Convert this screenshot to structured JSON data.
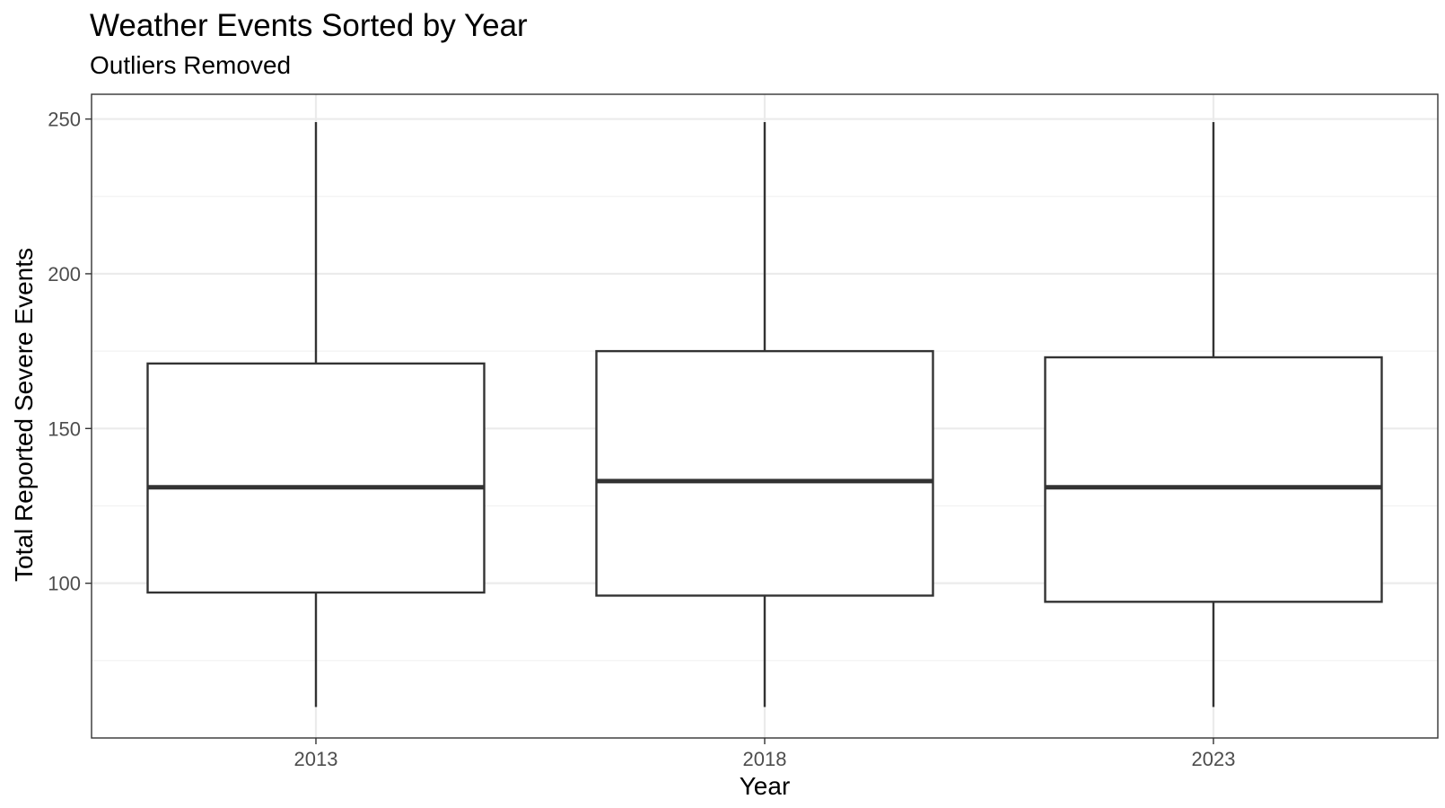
{
  "chart_data": {
    "type": "boxplot",
    "title": "Weather Events Sorted by Year",
    "subtitle": "Outliers Removed",
    "xlabel": "Year",
    "ylabel": "Total Reported Severe Events",
    "categories": [
      "2013",
      "2018",
      "2023"
    ],
    "boxes": [
      {
        "category": "2013",
        "min": 60,
        "q1": 97,
        "median": 131,
        "q3": 171,
        "max": 249
      },
      {
        "category": "2018",
        "min": 60,
        "q1": 96,
        "median": 133,
        "q3": 175,
        "max": 249
      },
      {
        "category": "2023",
        "min": 60,
        "q1": 94,
        "median": 131,
        "q3": 173,
        "max": 249
      }
    ],
    "ylim": [
      50,
      258
    ],
    "yticks": [
      100,
      150,
      200,
      250
    ],
    "yticks_minor": [
      75,
      125,
      175,
      225
    ],
    "grid": true,
    "legend": "none",
    "colors": {
      "box_fill": "#ffffff",
      "box_stroke": "#333333",
      "major_grid": "#ebebeb",
      "minor_grid": "#f2f2f2",
      "panel_border": "#333333"
    }
  }
}
